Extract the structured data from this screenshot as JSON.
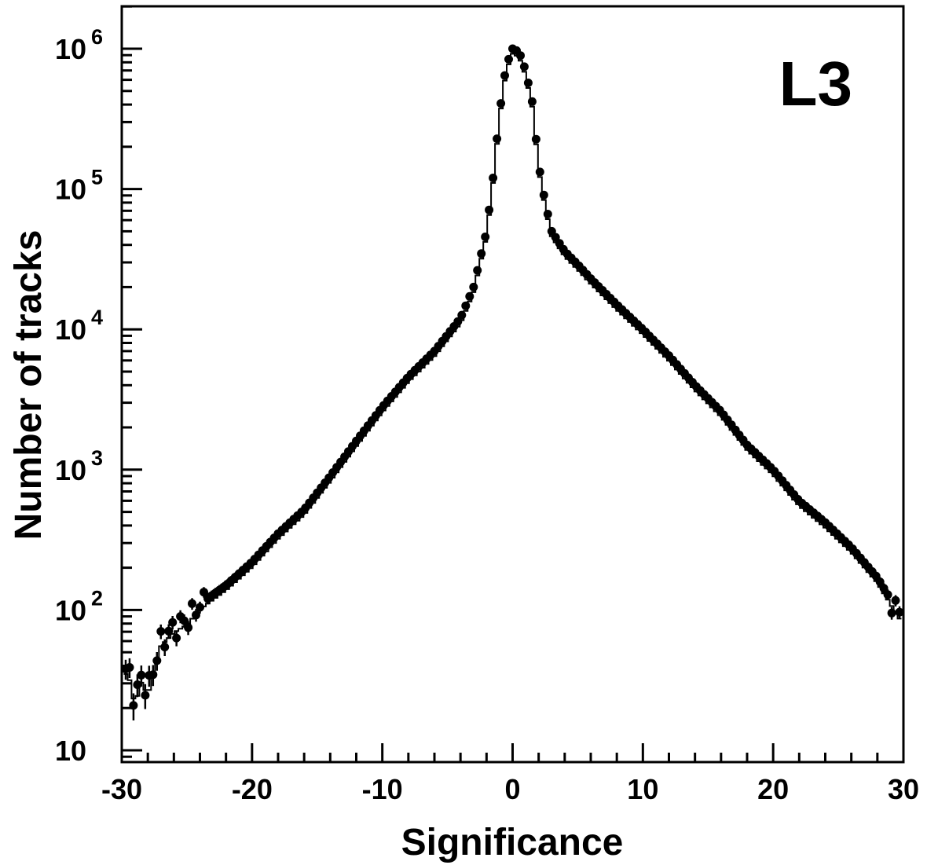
{
  "chart_data": {
    "type": "scatter",
    "title": "",
    "annotation": "L3",
    "xlabel": "Significance",
    "ylabel": "Number of tracks",
    "xlim": [
      -30,
      30
    ],
    "ylim": [
      10,
      3000000
    ],
    "yscale": "log",
    "grid": false,
    "x_ticks": [
      "-30",
      "-20",
      "-10",
      "0",
      "10",
      "20",
      "30"
    ],
    "y_ticks": [
      {
        "base": "10",
        "exp": ""
      },
      {
        "base": "10",
        "exp": "2"
      },
      {
        "base": "10",
        "exp": "3"
      },
      {
        "base": "10",
        "exp": "4"
      },
      {
        "base": "10",
        "exp": "5"
      },
      {
        "base": "10",
        "exp": "6"
      }
    ],
    "series": [
      {
        "style": "points-with-errorbars",
        "color": "#000000",
        "description_points": [
          [
            -29.5,
            38
          ],
          [
            -29,
            23
          ],
          [
            -28.5,
            33
          ],
          [
            -28,
            27
          ],
          [
            -27,
            60
          ],
          [
            -26,
            75
          ],
          [
            -25,
            85
          ],
          [
            -24,
            110
          ],
          [
            -22,
            150
          ],
          [
            -20,
            220
          ],
          [
            -18,
            350
          ],
          [
            -16,
            520
          ],
          [
            -14,
            900
          ],
          [
            -12,
            1600
          ],
          [
            -10,
            2800
          ],
          [
            -8,
            4600
          ],
          [
            -6,
            7000
          ],
          [
            -4,
            12000
          ],
          [
            -3,
            20000
          ],
          [
            -2,
            50000
          ],
          [
            -1.5,
            120000
          ],
          [
            -1,
            350000
          ],
          [
            -0.5,
            750000
          ],
          [
            0,
            1000000
          ],
          [
            0.5,
            950000
          ],
          [
            1,
            700000
          ],
          [
            1.5,
            420000
          ],
          [
            2,
            150000
          ],
          [
            2.5,
            80000
          ],
          [
            3,
            50000
          ],
          [
            4,
            36000
          ],
          [
            5,
            29000
          ],
          [
            6,
            23000
          ],
          [
            8,
            15000
          ],
          [
            10,
            10000
          ],
          [
            12,
            6500
          ],
          [
            14,
            4000
          ],
          [
            16,
            2600
          ],
          [
            18,
            1500
          ],
          [
            20,
            1000
          ],
          [
            22,
            600
          ],
          [
            24,
            420
          ],
          [
            26,
            280
          ],
          [
            28,
            170
          ],
          [
            29,
            120
          ],
          [
            30,
            85
          ]
        ]
      },
      {
        "style": "step-histogram",
        "color": "#000000"
      }
    ]
  }
}
